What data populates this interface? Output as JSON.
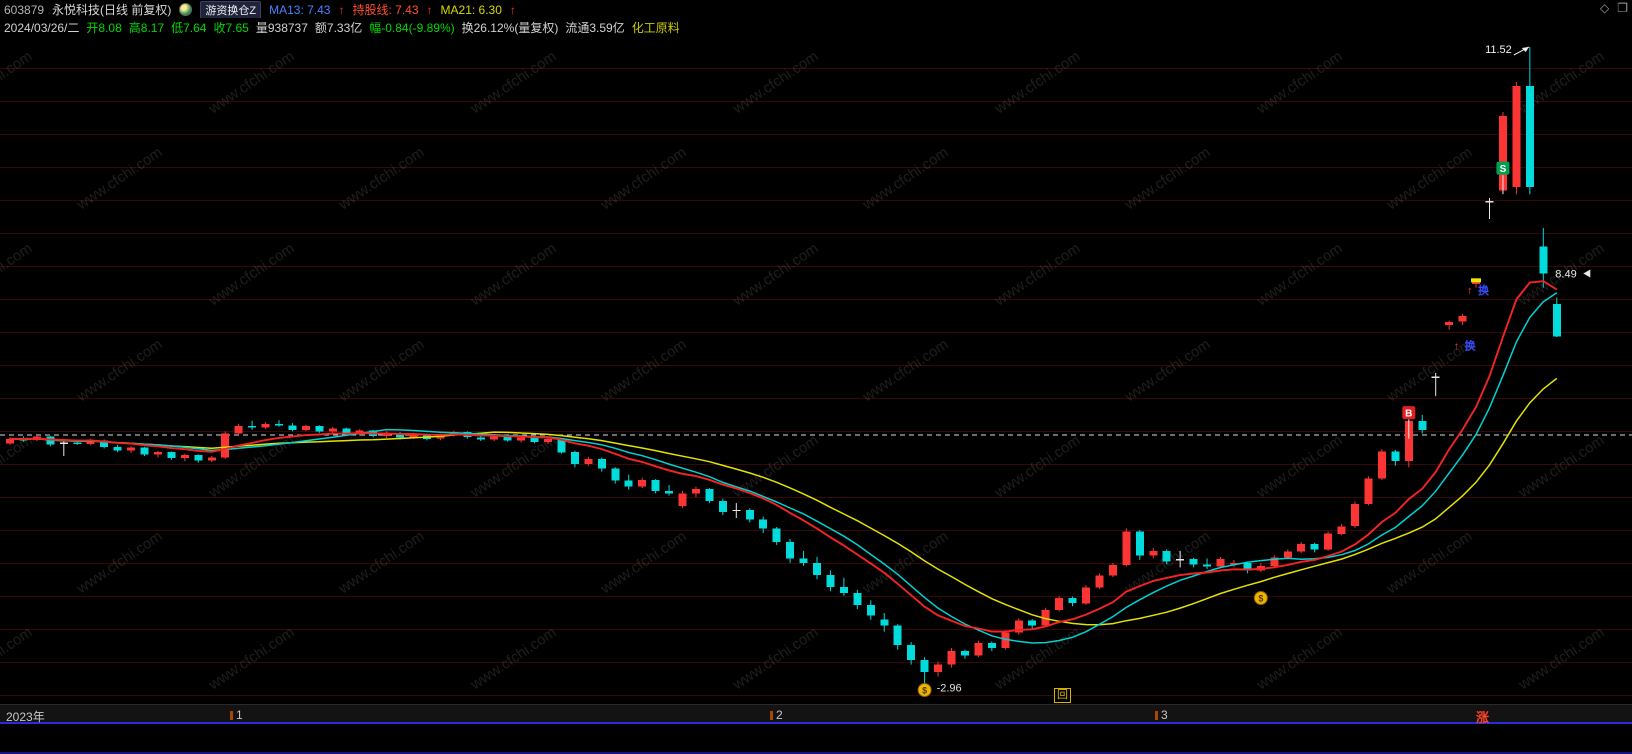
{
  "title_bar": {
    "stock_code": "603879",
    "stock_name": "永悦科技(日线 前复权)",
    "indicator_tag": "游资换仓Z",
    "ma13": "MA13: 7.43",
    "ma13_arrow": "↑",
    "hold_line": "持股线: 7.43",
    "hold_arrow": "↑",
    "ma21": "MA21: 6.30",
    "ma21_arrow": "↑",
    "diamond_icon": "◇",
    "restore_icon": "❐"
  },
  "info_bar": {
    "date": "2024/03/26/二",
    "open": "开8.08",
    "high": "高8.17",
    "low": "低7.64",
    "close": "收7.65",
    "volume": "量938737",
    "amount": "额7.33亿",
    "range": "幅-0.84(-9.89%)",
    "turnover": "换26.12%(量复权)",
    "float_shares": "流通3.59亿",
    "sector": "化工原料"
  },
  "watermark": "www.cfchi.com",
  "axis": {
    "year_label": "2023年",
    "months": [
      {
        "label": "1",
        "x": 230
      },
      {
        "label": "2",
        "x": 770
      },
      {
        "label": "3",
        "x": 1155
      }
    ],
    "replay_badge": "回",
    "right_label": "涨"
  },
  "chart_data": {
    "type": "candlestick",
    "title": "603879 永悦科技 日线 前复权",
    "ylim": [
      2.96,
      11.52
    ],
    "reference_price": 6.33,
    "low_label": "-2.96",
    "high_label": "11.52",
    "prev_close_label": "8.49",
    "colors": {
      "up": "#fb3434",
      "down": "#00dcdc",
      "doji": "#e8e8e8",
      "ma13": "#00d2d2",
      "ma21": "#e3e300",
      "hold": "#f42424",
      "grid": "#390707"
    },
    "ma_legend": [
      {
        "name": "MA13",
        "value": 7.43
      },
      {
        "name": "持股线",
        "value": 7.43
      },
      {
        "name": "MA21",
        "value": 6.3
      }
    ],
    "candles": [
      [
        6.22,
        6.3,
        6.2,
        6.28
      ],
      [
        6.28,
        6.31,
        6.24,
        6.26
      ],
      [
        6.26,
        6.33,
        6.25,
        6.31
      ],
      [
        6.31,
        6.32,
        6.18,
        6.2
      ],
      [
        6.22,
        6.25,
        6.05,
        6.23
      ],
      [
        6.23,
        6.27,
        6.2,
        6.21
      ],
      [
        6.21,
        6.28,
        6.19,
        6.26
      ],
      [
        6.26,
        6.27,
        6.15,
        6.17
      ],
      [
        6.17,
        6.2,
        6.1,
        6.12
      ],
      [
        6.12,
        6.18,
        6.09,
        6.16
      ],
      [
        6.16,
        6.17,
        6.05,
        6.07
      ],
      [
        6.07,
        6.12,
        6.03,
        6.1
      ],
      [
        6.1,
        6.11,
        6.0,
        6.02
      ],
      [
        6.02,
        6.08,
        5.98,
        6.06
      ],
      [
        6.06,
        6.07,
        5.96,
        5.99
      ],
      [
        5.99,
        6.05,
        5.97,
        6.03
      ],
      [
        6.03,
        6.38,
        6.01,
        6.35
      ],
      [
        6.35,
        6.48,
        6.33,
        6.45
      ],
      [
        6.45,
        6.52,
        6.4,
        6.43
      ],
      [
        6.43,
        6.5,
        6.41,
        6.48
      ],
      [
        6.48,
        6.53,
        6.44,
        6.46
      ],
      [
        6.46,
        6.49,
        6.38,
        6.4
      ],
      [
        6.4,
        6.47,
        6.38,
        6.45
      ],
      [
        6.45,
        6.46,
        6.36,
        6.38
      ],
      [
        6.38,
        6.44,
        6.35,
        6.42
      ],
      [
        6.42,
        6.43,
        6.33,
        6.35
      ],
      [
        6.35,
        6.41,
        6.32,
        6.39
      ],
      [
        6.39,
        6.4,
        6.3,
        6.32
      ],
      [
        6.32,
        6.38,
        6.29,
        6.36
      ],
      [
        6.36,
        6.37,
        6.27,
        6.3
      ],
      [
        6.3,
        6.36,
        6.28,
        6.34
      ],
      [
        6.34,
        6.35,
        6.26,
        6.28
      ],
      [
        6.28,
        6.35,
        6.26,
        6.33
      ],
      [
        6.33,
        6.39,
        6.31,
        6.37
      ],
      [
        6.37,
        6.38,
        6.28,
        6.3
      ],
      [
        6.3,
        6.34,
        6.25,
        6.27
      ],
      [
        6.27,
        6.34,
        6.25,
        6.32
      ],
      [
        6.32,
        6.33,
        6.24,
        6.26
      ],
      [
        6.26,
        6.32,
        6.23,
        6.3
      ],
      [
        6.3,
        6.31,
        6.22,
        6.24
      ],
      [
        6.24,
        6.3,
        6.21,
        6.28
      ],
      [
        6.28,
        6.29,
        6.08,
        6.1
      ],
      [
        6.1,
        6.12,
        5.9,
        5.94
      ],
      [
        5.94,
        6.04,
        5.92,
        6.01
      ],
      [
        6.01,
        6.03,
        5.84,
        5.88
      ],
      [
        5.88,
        5.9,
        5.68,
        5.72
      ],
      [
        5.72,
        5.8,
        5.6,
        5.64
      ],
      [
        5.64,
        5.76,
        5.62,
        5.73
      ],
      [
        5.73,
        5.74,
        5.55,
        5.58
      ],
      [
        5.58,
        5.66,
        5.52,
        5.55
      ],
      [
        5.38,
        5.58,
        5.35,
        5.55
      ],
      [
        5.55,
        5.64,
        5.5,
        5.61
      ],
      [
        5.61,
        5.62,
        5.42,
        5.45
      ],
      [
        5.45,
        5.48,
        5.26,
        5.3
      ],
      [
        5.32,
        5.42,
        5.22,
        5.33
      ],
      [
        5.33,
        5.35,
        5.16,
        5.2
      ],
      [
        5.2,
        5.24,
        5.02,
        5.08
      ],
      [
        5.08,
        5.1,
        4.86,
        4.9
      ],
      [
        4.9,
        4.94,
        4.62,
        4.68
      ],
      [
        4.68,
        4.78,
        4.58,
        4.62
      ],
      [
        4.62,
        4.7,
        4.4,
        4.46
      ],
      [
        4.46,
        4.52,
        4.24,
        4.3
      ],
      [
        4.3,
        4.42,
        4.18,
        4.22
      ],
      [
        4.22,
        4.26,
        4.0,
        4.06
      ],
      [
        4.06,
        4.12,
        3.86,
        3.92
      ],
      [
        3.86,
        3.95,
        3.7,
        3.78
      ],
      [
        3.78,
        3.8,
        3.46,
        3.52
      ],
      [
        3.52,
        3.56,
        3.26,
        3.32
      ],
      [
        3.32,
        3.36,
        2.96,
        3.16
      ],
      [
        3.16,
        3.3,
        3.1,
        3.26
      ],
      [
        3.26,
        3.48,
        3.22,
        3.44
      ],
      [
        3.44,
        3.46,
        3.34,
        3.38
      ],
      [
        3.38,
        3.58,
        3.36,
        3.55
      ],
      [
        3.55,
        3.57,
        3.44,
        3.48
      ],
      [
        3.48,
        3.72,
        3.46,
        3.69
      ],
      [
        3.69,
        3.88,
        3.66,
        3.85
      ],
      [
        3.85,
        3.87,
        3.74,
        3.78
      ],
      [
        3.78,
        4.02,
        3.76,
        3.99
      ],
      [
        3.99,
        4.18,
        3.97,
        4.15
      ],
      [
        4.15,
        4.17,
        4.04,
        4.08
      ],
      [
        4.08,
        4.32,
        4.06,
        4.29
      ],
      [
        4.29,
        4.48,
        4.27,
        4.45
      ],
      [
        4.45,
        4.62,
        4.43,
        4.59
      ],
      [
        4.59,
        5.08,
        4.57,
        5.04
      ],
      [
        5.04,
        5.06,
        4.66,
        4.72
      ],
      [
        4.72,
        4.82,
        4.68,
        4.78
      ],
      [
        4.78,
        4.8,
        4.6,
        4.64
      ],
      [
        4.66,
        4.78,
        4.56,
        4.67
      ],
      [
        4.67,
        4.69,
        4.56,
        4.6
      ],
      [
        4.6,
        4.68,
        4.54,
        4.57
      ],
      [
        4.57,
        4.7,
        4.55,
        4.67
      ],
      [
        4.6,
        4.66,
        4.56,
        4.62
      ],
      [
        4.62,
        4.64,
        4.48,
        4.52
      ],
      [
        4.52,
        4.62,
        4.5,
        4.58
      ],
      [
        4.58,
        4.72,
        4.56,
        4.69
      ],
      [
        4.69,
        4.8,
        4.67,
        4.77
      ],
      [
        4.77,
        4.9,
        4.75,
        4.87
      ],
      [
        4.87,
        4.89,
        4.76,
        4.8
      ],
      [
        4.8,
        5.04,
        4.78,
        5.01
      ],
      [
        5.01,
        5.14,
        4.99,
        5.11
      ],
      [
        5.11,
        5.44,
        5.09,
        5.41
      ],
      [
        5.41,
        5.78,
        5.39,
        5.75
      ],
      [
        5.75,
        6.14,
        5.73,
        6.11
      ],
      [
        6.11,
        6.13,
        5.92,
        5.98
      ],
      [
        5.98,
        6.55,
        5.9,
        6.52
      ],
      [
        6.52,
        6.6,
        6.35,
        6.4
      ],
      [
        7.1,
        7.16,
        6.85,
        7.11
      ],
      [
        7.8,
        7.86,
        7.74,
        7.84
      ],
      [
        7.85,
        7.95,
        7.8,
        7.92
      ],
      [
        8.35,
        8.42,
        8.3,
        8.4
      ],
      [
        9.45,
        9.5,
        9.22,
        9.46
      ],
      [
        9.6,
        10.65,
        9.55,
        10.6
      ],
      [
        9.65,
        11.05,
        9.55,
        11.0
      ],
      [
        11.0,
        11.52,
        9.55,
        9.65
      ],
      [
        8.85,
        9.1,
        8.3,
        8.49
      ],
      [
        8.08,
        8.17,
        7.64,
        7.65
      ]
    ],
    "markers": [
      {
        "type": "moneybag",
        "index": 68,
        "price": 2.92
      },
      {
        "type": "low-label",
        "index": 68,
        "price": 2.95,
        "text": "-2.96"
      },
      {
        "type": "moneybag",
        "index": 93,
        "price": 4.15
      },
      {
        "type": "buy-b",
        "index": 104,
        "price": 6.63,
        "text": "B"
      },
      {
        "type": "huan",
        "index": 108,
        "price": 7.53,
        "text": "换"
      },
      {
        "type": "yellow-dash",
        "index": 109
      },
      {
        "type": "huan",
        "index": 109,
        "price": 8.27,
        "text": "换"
      },
      {
        "type": "sell-s",
        "index": 111,
        "price": 9.9,
        "text": "S"
      },
      {
        "type": "high-label",
        "index": 113,
        "text": "11.52"
      },
      {
        "type": "price-tag",
        "index": 114,
        "price": 8.49,
        "text": "8.49"
      }
    ]
  }
}
